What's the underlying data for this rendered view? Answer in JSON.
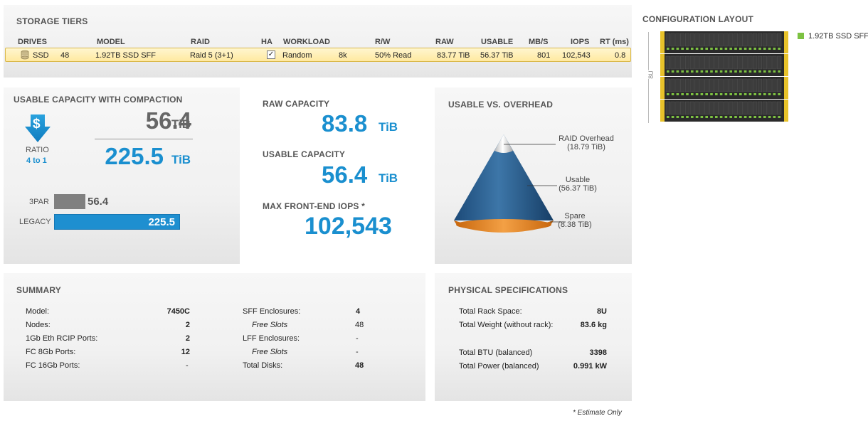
{
  "storage_tiers": {
    "title": "STORAGE TIERS",
    "headers": {
      "drives": "DRIVES",
      "model": "MODEL",
      "raid": "RAID",
      "ha": "HA",
      "workload": "WORKLOAD",
      "rw": "R/W",
      "raw": "RAW",
      "usable": "USABLE",
      "mbs": "MB/S",
      "iops": "IOPS",
      "rt": "RT (ms)"
    },
    "row": {
      "drive_type": "SSD",
      "count": "48",
      "model": "1.92TB SSD SFF",
      "raid": "Raid 5 (3+1)",
      "ha_check": "✓",
      "workload": "Random",
      "block": "8k",
      "rw": "50% Read",
      "raw": "83.77 TiB",
      "usable": "56.37 TiB",
      "mbs": "801",
      "iops": "102,543",
      "rt": "0.8"
    }
  },
  "compaction": {
    "title": "USABLE CAPACITY WITH COMPACTION",
    "usable_value": "56.4",
    "usable_unit": "TiB",
    "effective_value": "225.5",
    "effective_unit": "TiB",
    "dollar_symbol": "$",
    "ratio_label": "RATIO",
    "ratio_value": "4 to 1",
    "bars": [
      {
        "label": "3PAR",
        "value": "56.4",
        "amount": 56.4,
        "color": "#808080"
      },
      {
        "label": "LEGACY",
        "value": "225.5",
        "amount": 225.5,
        "color": "#1e8fd0"
      }
    ]
  },
  "capacity": {
    "raw_label": "RAW CAPACITY",
    "raw_value": "83.8",
    "raw_unit": "TiB",
    "usable_label": "USABLE CAPACITY",
    "usable_value": "56.4",
    "usable_unit": "TiB",
    "iops_label": "MAX FRONT-END IOPS *",
    "iops_value": "102,543"
  },
  "overhead": {
    "title": "USABLE VS. OVERHEAD",
    "raid_label": "RAID Overhead",
    "raid_value": "(18.79 TiB)",
    "usable_label": "Usable",
    "usable_value": "(56.37 TiB)",
    "spare_label": "Spare",
    "spare_value": "(8.38 TiB)"
  },
  "config": {
    "title": "CONFIGURATION LAYOUT",
    "rack_units": "8U",
    "legend": "1.92TB SSD SFF",
    "legend_color": "#7dc242"
  },
  "summary": {
    "title": "SUMMARY",
    "left": [
      {
        "label": "Model:",
        "value": "7450C"
      },
      {
        "label": "Nodes:",
        "value": "2"
      },
      {
        "label": "1Gb Eth RCIP Ports:",
        "value": "2"
      },
      {
        "label": "FC 8Gb Ports:",
        "value": "12"
      },
      {
        "label": "FC 16Gb Ports:",
        "value": "-"
      }
    ],
    "right": [
      {
        "label": "SFF Enclosures:",
        "value": "4"
      },
      {
        "label": "Free Slots",
        "value": "48"
      },
      {
        "label": "LFF Enclosures:",
        "value": "-"
      },
      {
        "label": "Free Slots",
        "value": "-"
      },
      {
        "label": "Total Disks:",
        "value": "48"
      }
    ]
  },
  "physical": {
    "title": "PHYSICAL SPECIFICATIONS",
    "rows": [
      {
        "label": "Total Rack Space:",
        "value": "8U"
      },
      {
        "label": "Total Weight (without rack):",
        "value": "83.6 kg"
      },
      {
        "label": "Total BTU (balanced)",
        "value": "3398"
      },
      {
        "label": "Total Power (balanced)",
        "value": "0.991 kW"
      }
    ]
  },
  "footnote": "* Estimate Only"
}
